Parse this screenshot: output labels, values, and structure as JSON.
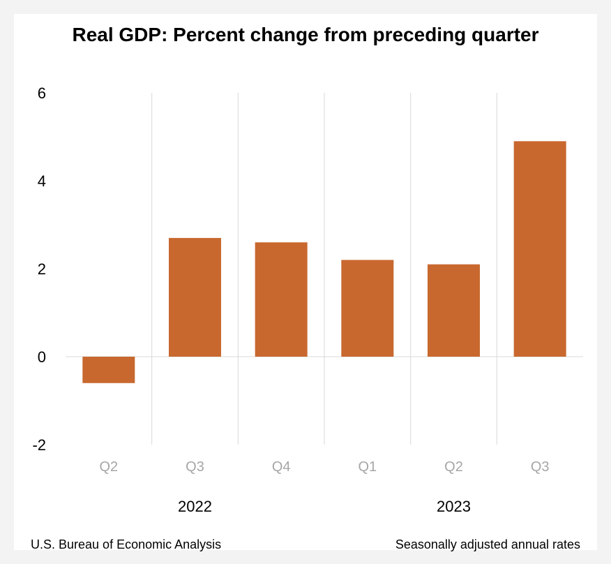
{
  "colors": {
    "bar": "#c8682f",
    "gridline": "#d9d9d9",
    "x_tick_text": "#a6a6a6",
    "axis_text": "#000000",
    "background": "#ffffff",
    "outer_background": "#f3f3f3"
  },
  "footer": {
    "source": "U.S. Bureau of Economic Analysis",
    "note": "Seasonally adjusted annual rates"
  },
  "chart_data": {
    "type": "bar",
    "title": "Real GDP:  Percent change from preceding quarter",
    "xlabel": "",
    "ylabel": "",
    "categories": [
      "Q2",
      "Q3",
      "Q4",
      "Q1",
      "Q2",
      "Q3"
    ],
    "groups": [
      {
        "label": "2022",
        "span": [
          0,
          2
        ]
      },
      {
        "label": "2023",
        "span": [
          3,
          5
        ]
      }
    ],
    "values": [
      -0.6,
      2.7,
      2.6,
      2.2,
      2.1,
      4.9
    ],
    "ylim": [
      -2,
      6
    ],
    "yticks": [
      "-2",
      "0",
      "2",
      "4",
      "6"
    ],
    "grid": "vertical category separators",
    "legend": "none"
  }
}
